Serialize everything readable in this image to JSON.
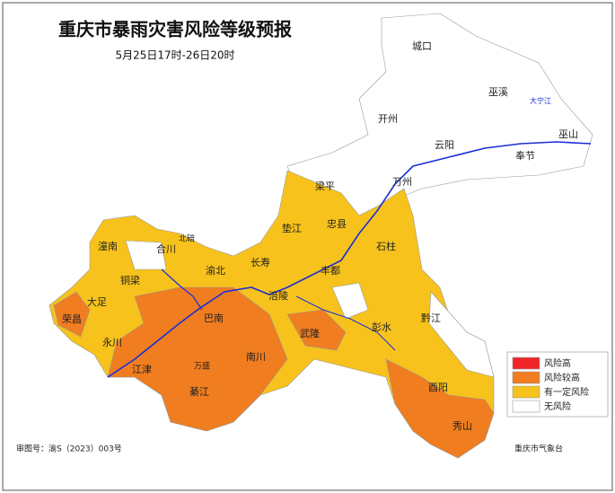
{
  "header": {
    "title": "重庆市暴雨灾害风险等级预报",
    "subtitle": "5月25日17时-26日20时"
  },
  "map": {
    "labels": [
      "城口",
      "巫溪",
      "大宁江",
      "开州",
      "云阳",
      "巫山",
      "奉节",
      "梁平",
      "万州",
      "忠县",
      "垫江",
      "石柱",
      "潼南",
      "合川",
      "北碚",
      "长寿",
      "渝北",
      "铜梁",
      "大足",
      "荣昌",
      "永川",
      "江津",
      "綦江",
      "巴南",
      "涪陵",
      "丰都",
      "武隆",
      "彭水",
      "黔江",
      "南川",
      "万盛",
      "酉阳",
      "秀山"
    ]
  },
  "legend": {
    "items": [
      {
        "label": "风险高",
        "color": "#f0262a"
      },
      {
        "label": "风险较高",
        "color": "#f07d1f"
      },
      {
        "label": "有一定风险",
        "color": "#f7c21b"
      },
      {
        "label": "无风险",
        "color": "#ffffff"
      }
    ]
  },
  "footer": {
    "approval": "审图号：渝S（2023）003号",
    "source": "重庆市气象台"
  }
}
